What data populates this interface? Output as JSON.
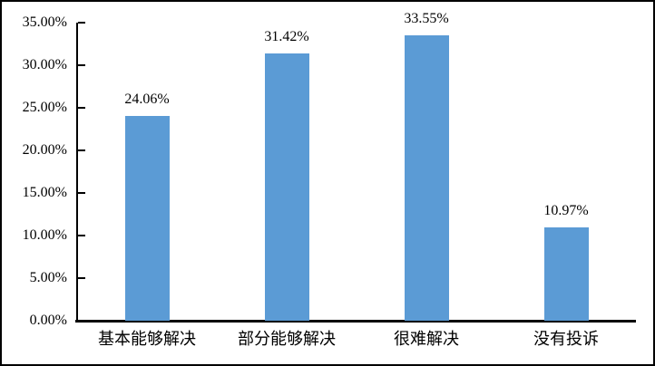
{
  "chart_data": {
    "type": "bar",
    "title": "",
    "xlabel": "",
    "ylabel": "",
    "categories": [
      "基本能够解决",
      "部分能够解决",
      "很难解决",
      "没有投诉"
    ],
    "values": [
      24.06,
      31.42,
      33.55,
      10.97
    ],
    "value_labels": [
      "24.06%",
      "31.42%",
      "33.55%",
      "10.97%"
    ],
    "ylim": [
      0,
      35
    ],
    "ytick_step": 5,
    "ytick_values": [
      0,
      5,
      10,
      15,
      20,
      25,
      30,
      35
    ],
    "ytick_labels": [
      "0.00%",
      "5.00%",
      "10.00%",
      "15.00%",
      "20.00%",
      "25.00%",
      "30.00%",
      "35.00%"
    ],
    "grid": false,
    "legend_position": "none",
    "bar_color": "#5B9BD5",
    "axis_color": "#000000",
    "text_color": "#000000",
    "frame_border_color": "#000000"
  }
}
